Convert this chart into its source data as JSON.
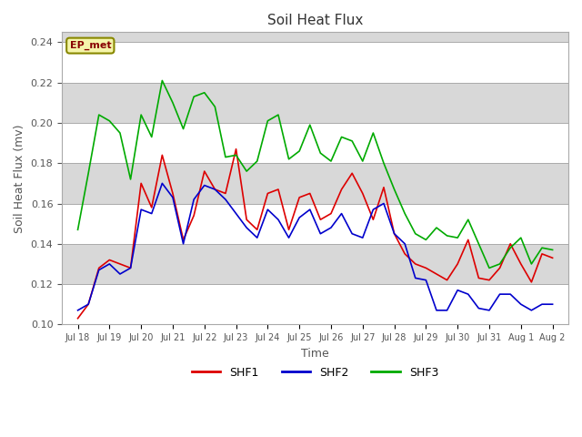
{
  "title": "Soil Heat Flux",
  "xlabel": "Time",
  "ylabel": "Soil Heat Flux (mv)",
  "ylim": [
    0.1,
    0.245
  ],
  "yticks": [
    0.1,
    0.12,
    0.14,
    0.16,
    0.18,
    0.2,
    0.22,
    0.24
  ],
  "fig_bg_color": "#ffffff",
  "plot_bg_color": "#d8d8d8",
  "band_colors": [
    "#ffffff",
    "#d8d8d8"
  ],
  "grid_color": "#cccccc",
  "annotation_text": "EP_met",
  "annotation_box_color": "#f5f5aa",
  "annotation_border_color": "#888800",
  "annotation_text_color": "#880000",
  "colors": {
    "SHF1": "#dd0000",
    "SHF2": "#0000cc",
    "SHF3": "#00aa00"
  },
  "x_tick_labels": [
    "Jul 18",
    "Jul 19",
    "Jul 20",
    "Jul 21",
    "Jul 22",
    "Jul 23",
    "Jul 24",
    "Jul 25",
    "Jul 26",
    "Jul 27",
    "Jul 28",
    "Jul 29",
    "Jul 30",
    "Jul 31",
    "Aug 1",
    "Aug 2"
  ],
  "SHF1": [
    0.103,
    0.11,
    0.128,
    0.132,
    0.13,
    0.128,
    0.17,
    0.158,
    0.184,
    0.165,
    0.142,
    0.154,
    0.176,
    0.167,
    0.165,
    0.187,
    0.152,
    0.147,
    0.165,
    0.167,
    0.147,
    0.163,
    0.165,
    0.152,
    0.155,
    0.167,
    0.175,
    0.165,
    0.152,
    0.168,
    0.145,
    0.135,
    0.13,
    0.128,
    0.125,
    0.122,
    0.13,
    0.142,
    0.123,
    0.122,
    0.128,
    0.14,
    0.13,
    0.121,
    0.135,
    0.133
  ],
  "SHF2": [
    0.107,
    0.11,
    0.127,
    0.13,
    0.125,
    0.128,
    0.157,
    0.155,
    0.17,
    0.163,
    0.14,
    0.162,
    0.169,
    0.167,
    0.162,
    0.155,
    0.148,
    0.143,
    0.157,
    0.152,
    0.143,
    0.153,
    0.157,
    0.145,
    0.148,
    0.155,
    0.145,
    0.143,
    0.157,
    0.16,
    0.145,
    0.14,
    0.123,
    0.122,
    0.107,
    0.107,
    0.117,
    0.115,
    0.108,
    0.107,
    0.115,
    0.115,
    0.11,
    0.107,
    0.11,
    0.11
  ],
  "SHF3": [
    0.147,
    0.175,
    0.204,
    0.201,
    0.195,
    0.172,
    0.204,
    0.193,
    0.221,
    0.21,
    0.197,
    0.213,
    0.215,
    0.208,
    0.183,
    0.184,
    0.176,
    0.181,
    0.201,
    0.204,
    0.182,
    0.186,
    0.199,
    0.185,
    0.181,
    0.193,
    0.191,
    0.181,
    0.195,
    0.18,
    0.167,
    0.155,
    0.145,
    0.142,
    0.148,
    0.144,
    0.143,
    0.152,
    0.14,
    0.128,
    0.13,
    0.138,
    0.143,
    0.13,
    0.138,
    0.137
  ]
}
